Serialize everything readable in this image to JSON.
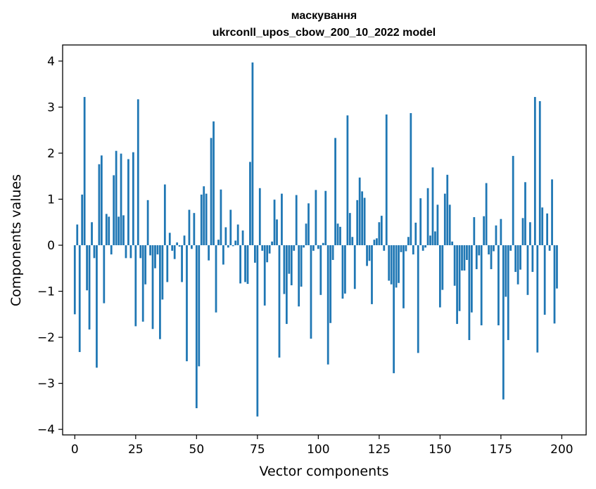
{
  "chart_data": {
    "type": "bar",
    "title": "маскування",
    "subtitle": "ukrconll_upos_cbow_200_10_2022 model",
    "xlabel": "Vector components",
    "ylabel": "Components values",
    "xlim": [
      -5,
      210
    ],
    "ylim": [
      -4.12,
      4.35
    ],
    "xticks": [
      0,
      25,
      50,
      75,
      100,
      125,
      150,
      175,
      200
    ],
    "yticks": [
      -4,
      -3,
      -2,
      -1,
      0,
      1,
      2,
      3,
      4
    ],
    "bar_color": "#1f77b4",
    "grid": false,
    "values": [
      -1.5,
      0.45,
      -2.32,
      1.1,
      3.22,
      -0.98,
      -1.83,
      0.5,
      -0.28,
      -2.66,
      1.76,
      1.95,
      -1.26,
      0.68,
      0.62,
      -0.2,
      1.52,
      2.05,
      0.62,
      1.99,
      0.65,
      -0.28,
      1.87,
      -0.28,
      2.02,
      -1.76,
      3.17,
      -0.28,
      -1.66,
      -0.85,
      0.98,
      -0.22,
      -1.82,
      -0.5,
      -0.2,
      -2.04,
      -1.18,
      1.32,
      -0.8,
      0.27,
      -0.12,
      -0.3,
      0.06,
      -0.03,
      -0.8,
      0.21,
      -2.52,
      0.77,
      -0.08,
      0.7,
      -3.54,
      -2.63,
      1.1,
      1.28,
      1.12,
      -0.33,
      2.33,
      2.69,
      -1.46,
      0.12,
      1.21,
      -0.42,
      0.39,
      -0.05,
      0.77,
      -0.02,
      0.1,
      0.45,
      -0.83,
      0.32,
      -0.8,
      -0.84,
      1.81,
      3.97,
      -0.38,
      -3.72,
      1.24,
      -0.12,
      -1.31,
      -0.37,
      -0.18,
      0.08,
      0.99,
      0.56,
      -2.44,
      1.12,
      -1.06,
      -1.71,
      -0.62,
      -0.87,
      -0.12,
      1.09,
      -1.33,
      -0.9,
      -0.05,
      0.47,
      0.91,
      -2.03,
      -0.12,
      1.2,
      -0.08,
      -1.08,
      0.05,
      1.18,
      -2.59,
      -1.69,
      -0.32,
      2.33,
      0.47,
      0.4,
      -1.16,
      -1.05,
      2.82,
      0.7,
      0.18,
      -0.95,
      0.98,
      1.47,
      1.17,
      1.03,
      -0.45,
      -0.34,
      -1.28,
      0.12,
      0.15,
      0.5,
      0.64,
      -0.12,
      2.84,
      -0.77,
      -0.85,
      -2.78,
      -0.92,
      -0.82,
      -0.15,
      -1.37,
      -0.13,
      0.18,
      2.87,
      -0.2,
      0.49,
      -2.34,
      1.02,
      -0.12,
      -0.05,
      1.24,
      0.21,
      1.69,
      0.3,
      0.88,
      -1.35,
      -0.97,
      1.12,
      1.53,
      0.88,
      0.08,
      -0.88,
      -1.71,
      -1.43,
      -0.55,
      -0.55,
      -0.32,
      -2.06,
      -1.46,
      0.61,
      -0.52,
      -0.22,
      -1.74,
      0.63,
      1.35,
      -0.2,
      -0.52,
      -0.13,
      0.43,
      -1.74,
      0.57,
      -3.35,
      -1.12,
      -2.06,
      -0.12,
      1.94,
      -0.58,
      -0.85,
      -0.53,
      0.59,
      1.37,
      -1.08,
      0.5,
      -0.58,
      3.22,
      -2.33,
      3.13,
      0.82,
      -1.51,
      0.69,
      -0.12,
      1.43,
      -1.7,
      -0.94
    ]
  }
}
